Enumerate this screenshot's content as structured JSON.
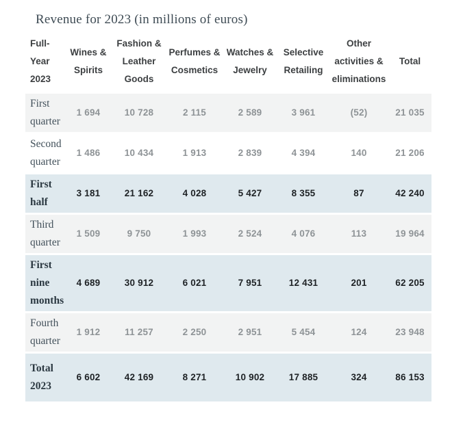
{
  "title": "Revenue for 2023 (in millions of euros)",
  "chart_data": {
    "type": "table",
    "title": "Revenue for 2023 (in millions of euros)",
    "units": "millions of euros",
    "columns": [
      "Full-Year 2023",
      "Wines & Spirits",
      "Fashion & Leather Goods",
      "Perfumes & Cosmetics",
      "Watches & Jewelry",
      "Selective Retailing",
      "Other activities & eliminations",
      "Total"
    ],
    "rows": [
      {
        "label": "First quarter",
        "emphasis": false,
        "shade": "gray",
        "values": [
          "1 694",
          "10 728",
          "2 115",
          "2 589",
          "3 961",
          "(52)",
          "21 035"
        ]
      },
      {
        "label": "Second quarter",
        "emphasis": false,
        "shade": "white",
        "values": [
          "1 486",
          "10 434",
          "1 913",
          "2 839",
          "4 394",
          "140",
          "21 206"
        ]
      },
      {
        "label": "First half",
        "emphasis": true,
        "shade": "blue",
        "values": [
          "3 181",
          "21 162",
          "4 028",
          "5 427",
          "8 355",
          "87",
          "42 240"
        ]
      },
      {
        "label": "Third quarter",
        "emphasis": false,
        "shade": "gray",
        "values": [
          "1 509",
          "9 750",
          "1 993",
          "2 524",
          "4 076",
          "113",
          "19 964"
        ]
      },
      {
        "label": "First nine months",
        "emphasis": true,
        "shade": "blue",
        "values": [
          "4 689",
          "30 912",
          "6 021",
          "7 951",
          "12 431",
          "201",
          "62 205"
        ]
      },
      {
        "label": "Fourth quarter",
        "emphasis": false,
        "shade": "gray",
        "values": [
          "1 912",
          "11 257",
          "2 250",
          "2 951",
          "5 454",
          "124",
          "23 948"
        ]
      },
      {
        "label": "Total 2023",
        "emphasis": true,
        "shade": "blue",
        "values": [
          "6 602",
          "42 169",
          "8 271",
          "10 902",
          "17 885",
          "324",
          "86 153"
        ]
      }
    ]
  },
  "colors": {
    "title-text": "#3e4b54",
    "header-text": "#3c3f41",
    "label-text": "#42505a",
    "label-strong": "#2c3942",
    "value-muted": "#8e9396",
    "value-strong": "#1e2225",
    "row-gray": "#f2f3f3",
    "row-white": "#ffffff",
    "row-blue": "#dfe9ee"
  }
}
